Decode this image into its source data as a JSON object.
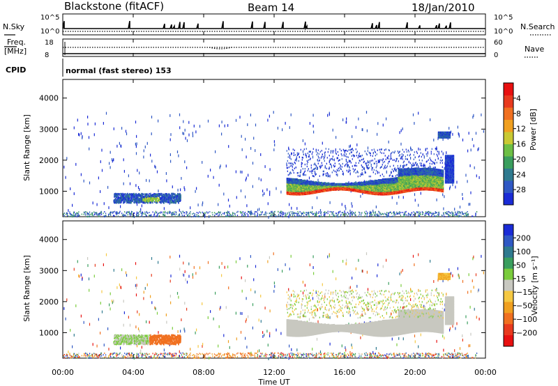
{
  "header": {
    "station": "Blackstone (fitACF)",
    "beam": "Beam 14",
    "date": "18/Jan/2010"
  },
  "info_panels": {
    "nsky_label": "N.Sky",
    "nsearch_label": "N.Search",
    "freq_label": "Freq.",
    "freq_unit": "[MHz]",
    "nave_label": "Nave",
    "cpid_label": "CPID",
    "cpid_text": "normal (fast stereo) 153",
    "left_ticks_top": [
      "10^5",
      "10^0"
    ],
    "right_ticks_top": [
      "10^5",
      "10^0"
    ],
    "left_ticks_freq": [
      "18",
      "8"
    ],
    "right_ticks_nave": [
      "60",
      "0"
    ]
  },
  "chart_data": [
    {
      "type": "heatmap",
      "panel": "power",
      "ylabel": "Slant Range [km]",
      "xlabel": "Time UT",
      "yticks": [
        "1000",
        "2000",
        "3000",
        "4000"
      ],
      "ylim": [
        180,
        4600
      ],
      "xlim": [
        0,
        24
      ],
      "xticks": [
        "00:00",
        "04:00",
        "08:00",
        "12:00",
        "16:00",
        "20:00",
        "00:00"
      ],
      "colorbar": {
        "label": "Power [dB]",
        "ticks": [
          "4",
          "8",
          "12",
          "16",
          "20",
          "24",
          "28"
        ],
        "colors": [
          "#1a2bd6",
          "#2f58c4",
          "#2f7a8f",
          "#3a9e5e",
          "#6dbf45",
          "#c9c933",
          "#f0a020",
          "#f07020",
          "#e83a1e",
          "#e81010"
        ]
      }
    },
    {
      "type": "heatmap",
      "panel": "velocity",
      "ylabel": "Slant Range [km]",
      "xlabel": "Time UT",
      "yticks": [
        "1000",
        "2000",
        "3000",
        "4000"
      ],
      "ylim": [
        180,
        4600
      ],
      "xlim": [
        0,
        24
      ],
      "xticks": [
        "00:00",
        "04:00",
        "08:00",
        "12:00",
        "16:00",
        "20:00",
        "00:00"
      ],
      "colorbar": {
        "label": "Velocity [m s⁻¹]",
        "ticks": [
          "200",
          "100",
          "50",
          "15",
          "−15",
          "−50",
          "−100",
          "−200"
        ],
        "colors": [
          "#1a2bd6",
          "#2f58c4",
          "#2f7a8f",
          "#3a9e5e",
          "#7acc3c",
          "#c8c8c0",
          "#f5c842",
          "#f0a020",
          "#f07020",
          "#e83a1e",
          "#e81010"
        ]
      }
    }
  ],
  "x_axis": {
    "title": "Time UT",
    "ticks": [
      "00:00",
      "04:00",
      "08:00",
      "12:00",
      "16:00",
      "20:00",
      "00:00"
    ]
  }
}
